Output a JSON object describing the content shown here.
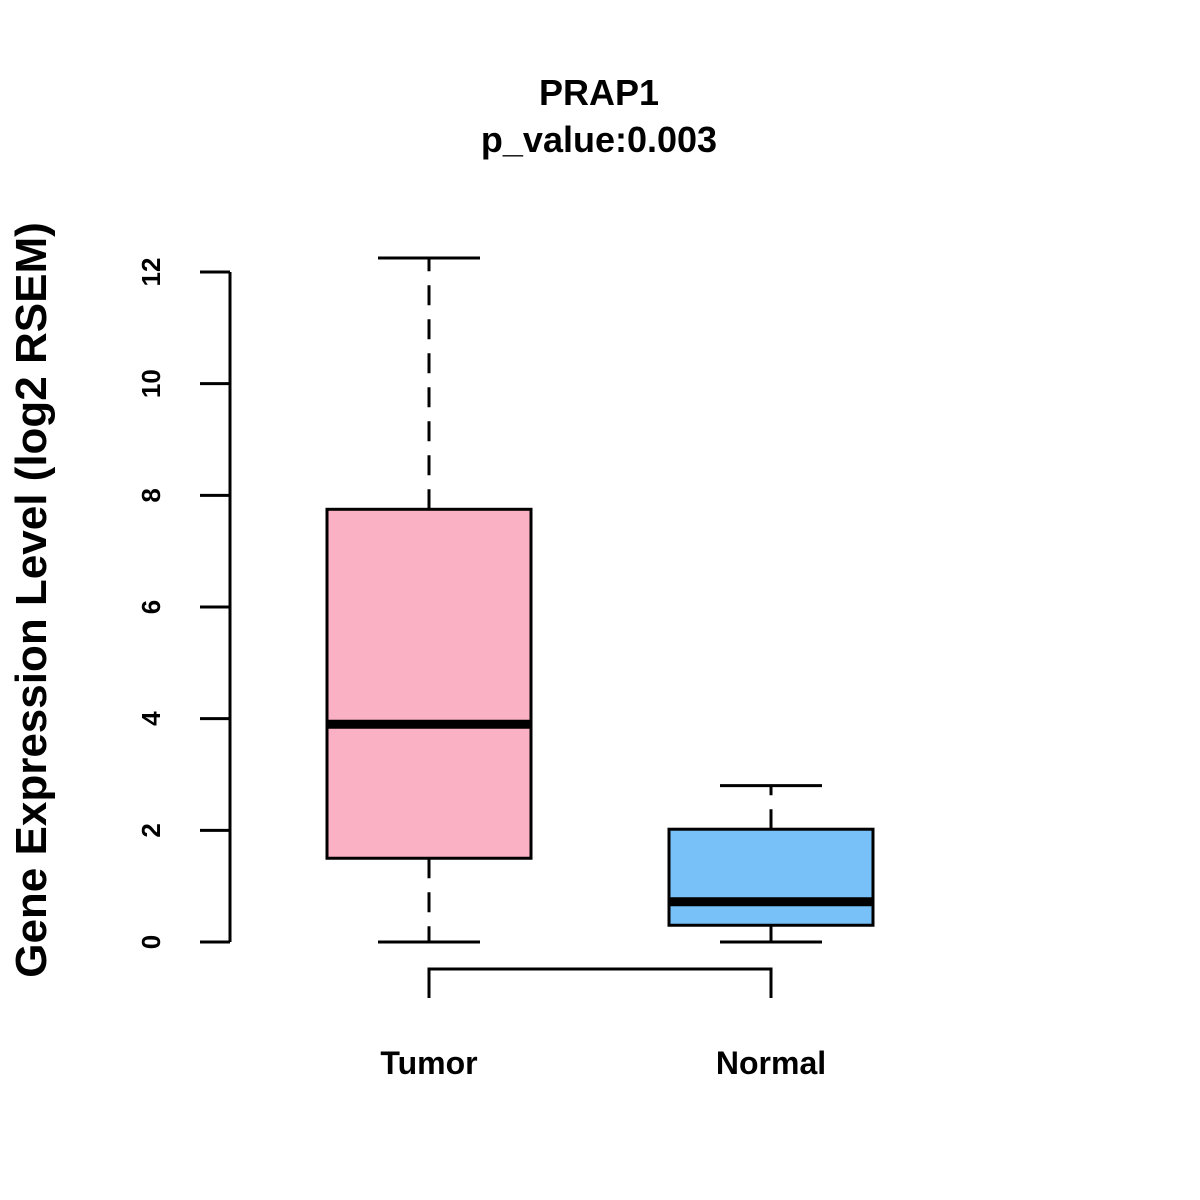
{
  "chart_data": {
    "type": "boxplot",
    "title": "PRAP1",
    "subtitle": "p_value:0.003",
    "xlabel": "",
    "ylabel": "Gene Expression Level (log2 RSEM)",
    "ylim": [
      0,
      12
    ],
    "yticks": [
      "0",
      "2",
      "4",
      "6",
      "8",
      "10",
      "12"
    ],
    "categories": [
      "Tumor",
      "Normal"
    ],
    "boxes": [
      {
        "category": "Tumor",
        "min": 0,
        "q1": 1.5,
        "median": 3.9,
        "q3": 7.75,
        "max": 12.25,
        "color": "#FBB1C4"
      },
      {
        "category": "Normal",
        "min": 0,
        "q1": 0.3,
        "median": 0.72,
        "q3": 2.02,
        "max": 2.8,
        "color": "#77C0F8"
      }
    ],
    "comparison_bracket": [
      "Tumor",
      "Normal"
    ],
    "grid": false,
    "legend": "none"
  }
}
